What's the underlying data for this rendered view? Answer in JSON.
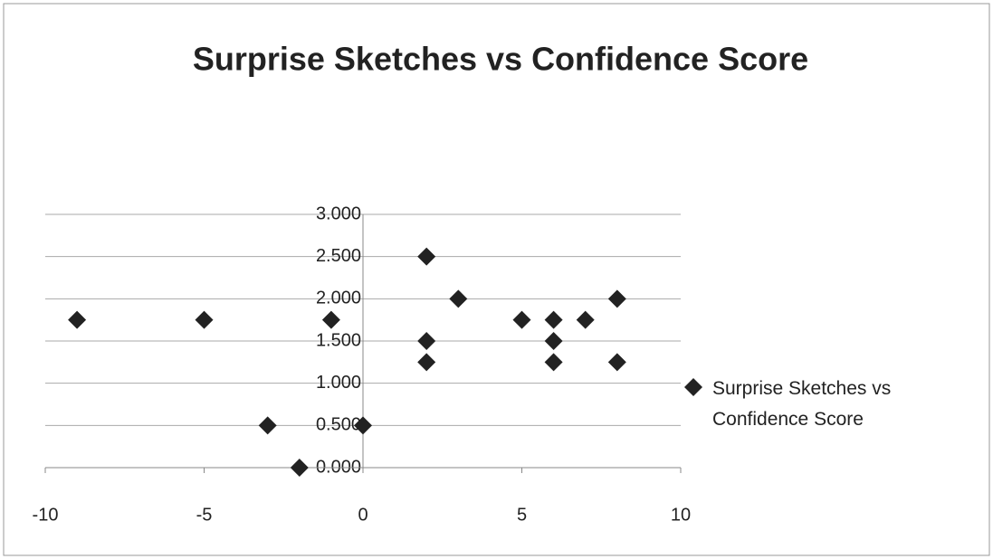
{
  "chart_data": {
    "type": "scatter",
    "title": "Surprise Sketches vs Confidence Score",
    "series": [
      {
        "name": "Surprise Sketches vs Confidence Score",
        "color": "#222222",
        "x": [
          -9,
          -5,
          -1,
          -3,
          0,
          -2,
          2,
          2,
          2,
          3,
          5,
          6,
          6,
          6,
          7,
          8,
          8
        ],
        "values": [
          1.75,
          1.75,
          1.75,
          0.5,
          0.5,
          0,
          2.5,
          1.5,
          1.25,
          2,
          1.75,
          1.75,
          1.5,
          1.25,
          1.75,
          2,
          1.25
        ]
      }
    ],
    "xlim": [
      -10,
      10
    ],
    "xticks": [
      -10,
      -5,
      0,
      5,
      10
    ],
    "ylim": [
      0,
      3
    ],
    "yticks": [
      {
        "value": 0,
        "label": "0.000"
      },
      {
        "value": 0.5,
        "label": "0.500"
      },
      {
        "value": 1,
        "label": "1.000"
      },
      {
        "value": 1.5,
        "label": "1.500"
      },
      {
        "value": 2,
        "label": "2.000"
      },
      {
        "value": 2.5,
        "label": "2.500"
      },
      {
        "value": 3,
        "label": "3.000"
      }
    ],
    "grid": true,
    "legend": "right"
  }
}
